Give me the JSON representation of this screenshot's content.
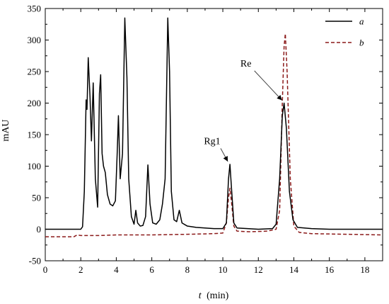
{
  "chart_data": {
    "type": "line",
    "title": "",
    "xlabel_var": "t",
    "xlabel_unit": "(min)",
    "ylabel": "mAU",
    "xlim": [
      0,
      19
    ],
    "ylim": [
      -50,
      350
    ],
    "x_ticks": [
      0,
      2,
      4,
      6,
      8,
      10,
      12,
      14,
      16,
      18
    ],
    "y_ticks": [
      -50,
      0,
      50,
      100,
      150,
      200,
      250,
      300,
      350
    ],
    "grid": false,
    "legend_position": "top-right",
    "series": [
      {
        "name": "a",
        "color": "#000000",
        "dash": "solid",
        "points": [
          [
            0,
            0
          ],
          [
            2.0,
            0
          ],
          [
            2.1,
            4
          ],
          [
            2.2,
            60
          ],
          [
            2.3,
            205
          ],
          [
            2.35,
            190
          ],
          [
            2.42,
            272
          ],
          [
            2.52,
            210
          ],
          [
            2.6,
            140
          ],
          [
            2.7,
            232
          ],
          [
            2.82,
            80
          ],
          [
            2.95,
            35
          ],
          [
            3.05,
            215
          ],
          [
            3.12,
            245
          ],
          [
            3.2,
            120
          ],
          [
            3.28,
            100
          ],
          [
            3.38,
            90
          ],
          [
            3.5,
            55
          ],
          [
            3.65,
            40
          ],
          [
            3.8,
            37
          ],
          [
            3.95,
            45
          ],
          [
            4.05,
            120
          ],
          [
            4.12,
            180
          ],
          [
            4.22,
            80
          ],
          [
            4.35,
            120
          ],
          [
            4.48,
            335
          ],
          [
            4.6,
            240
          ],
          [
            4.7,
            80
          ],
          [
            4.85,
            20
          ],
          [
            5.0,
            8
          ],
          [
            5.1,
            30
          ],
          [
            5.2,
            10
          ],
          [
            5.35,
            5
          ],
          [
            5.5,
            6
          ],
          [
            5.65,
            20
          ],
          [
            5.78,
            102
          ],
          [
            5.9,
            40
          ],
          [
            6.05,
            10
          ],
          [
            6.25,
            8
          ],
          [
            6.45,
            15
          ],
          [
            6.6,
            40
          ],
          [
            6.75,
            80
          ],
          [
            6.9,
            335
          ],
          [
            7.0,
            250
          ],
          [
            7.1,
            60
          ],
          [
            7.25,
            15
          ],
          [
            7.4,
            12
          ],
          [
            7.55,
            30
          ],
          [
            7.7,
            10
          ],
          [
            8.0,
            5
          ],
          [
            8.5,
            3
          ],
          [
            9.0,
            2
          ],
          [
            9.5,
            1
          ],
          [
            10.0,
            1
          ],
          [
            10.2,
            10
          ],
          [
            10.32,
            80
          ],
          [
            10.4,
            103
          ],
          [
            10.5,
            60
          ],
          [
            10.62,
            10
          ],
          [
            10.8,
            2
          ],
          [
            12.0,
            0
          ],
          [
            12.8,
            1
          ],
          [
            13.0,
            8
          ],
          [
            13.2,
            80
          ],
          [
            13.35,
            180
          ],
          [
            13.45,
            200
          ],
          [
            13.58,
            160
          ],
          [
            13.75,
            60
          ],
          [
            13.95,
            15
          ],
          [
            14.2,
            3
          ],
          [
            15.0,
            1
          ],
          [
            16.0,
            0
          ],
          [
            19.0,
            0
          ]
        ]
      },
      {
        "name": "b",
        "color": "#8b1a1a",
        "dash": "dashed",
        "points": [
          [
            0,
            -12
          ],
          [
            1.6,
            -12
          ],
          [
            1.8,
            -9
          ],
          [
            2.0,
            -10
          ],
          [
            3.0,
            -10
          ],
          [
            4.0,
            -9
          ],
          [
            6.0,
            -9
          ],
          [
            8.0,
            -8
          ],
          [
            9.5,
            -7
          ],
          [
            10.0,
            -6
          ],
          [
            10.2,
            10
          ],
          [
            10.32,
            50
          ],
          [
            10.4,
            65
          ],
          [
            10.5,
            40
          ],
          [
            10.62,
            5
          ],
          [
            10.8,
            -3
          ],
          [
            11.5,
            -4
          ],
          [
            12.5,
            -3
          ],
          [
            13.0,
            0
          ],
          [
            13.2,
            30
          ],
          [
            13.35,
            200
          ],
          [
            13.45,
            290
          ],
          [
            13.52,
            310
          ],
          [
            13.62,
            250
          ],
          [
            13.8,
            80
          ],
          [
            14.0,
            5
          ],
          [
            14.3,
            -5
          ],
          [
            15.0,
            -7
          ],
          [
            17.0,
            -8
          ],
          [
            19.0,
            -9
          ]
        ]
      }
    ],
    "annotations": [
      {
        "text": "Rg1",
        "x": 10.4,
        "y": 103,
        "label_x": 9.4,
        "label_y": 135
      },
      {
        "text": "Re",
        "x": 13.45,
        "y": 200,
        "label_x": 11.3,
        "label_y": 258
      }
    ]
  }
}
